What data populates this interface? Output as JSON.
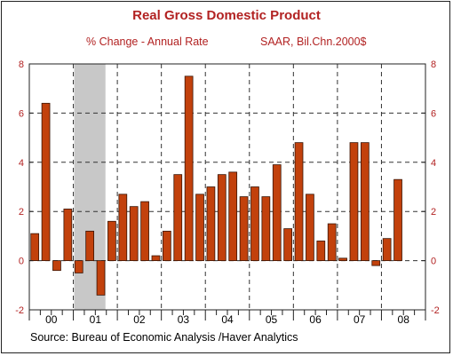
{
  "title": "Real Gross Domestic Product",
  "subtitle_left": "% Change - Annual Rate",
  "subtitle_right": "SAAR, Bil.Chn.2000$",
  "source": "Source:  Bureau of Economic Analysis /Haver Analytics",
  "colors": {
    "title": "#b22222",
    "bar_fill": "#c2410c",
    "bar_stroke": "#3a1505",
    "recession": "#c8c8c8",
    "tick_label": "#b22222"
  },
  "chart_data": {
    "type": "bar",
    "ylim": [
      -2,
      8
    ],
    "yticks": [
      -2,
      0,
      2,
      4,
      6,
      8
    ],
    "year_labels": [
      "00",
      "01",
      "02",
      "03",
      "04",
      "05",
      "06",
      "07",
      "08"
    ],
    "recession_shading": {
      "from_quarter_index": 4,
      "to_quarter_index": 6
    },
    "grid": "dashed vertical lines between years, dashed horizontal lines at y ticks",
    "quarters": [
      "00Q1",
      "00Q2",
      "00Q3",
      "00Q4",
      "01Q1",
      "01Q2",
      "01Q3",
      "01Q4",
      "02Q1",
      "02Q2",
      "02Q3",
      "02Q4",
      "03Q1",
      "03Q2",
      "03Q3",
      "03Q4",
      "04Q1",
      "04Q2",
      "04Q3",
      "04Q4",
      "05Q1",
      "05Q2",
      "05Q3",
      "05Q4",
      "06Q1",
      "06Q2",
      "06Q3",
      "06Q4",
      "07Q1",
      "07Q2",
      "07Q3",
      "07Q4",
      "08Q1",
      "08Q2",
      "08Q3",
      "08Q4"
    ],
    "values": [
      1.1,
      6.4,
      -0.4,
      2.1,
      -0.5,
      1.2,
      -1.4,
      1.6,
      2.7,
      2.2,
      2.4,
      0.2,
      1.2,
      3.5,
      7.5,
      2.7,
      3.0,
      3.5,
      3.6,
      2.6,
      3.0,
      2.6,
      3.9,
      1.3,
      4.8,
      2.7,
      0.8,
      1.5,
      0.1,
      4.8,
      4.8,
      -0.2,
      0.9,
      3.3,
      null,
      null
    ]
  }
}
